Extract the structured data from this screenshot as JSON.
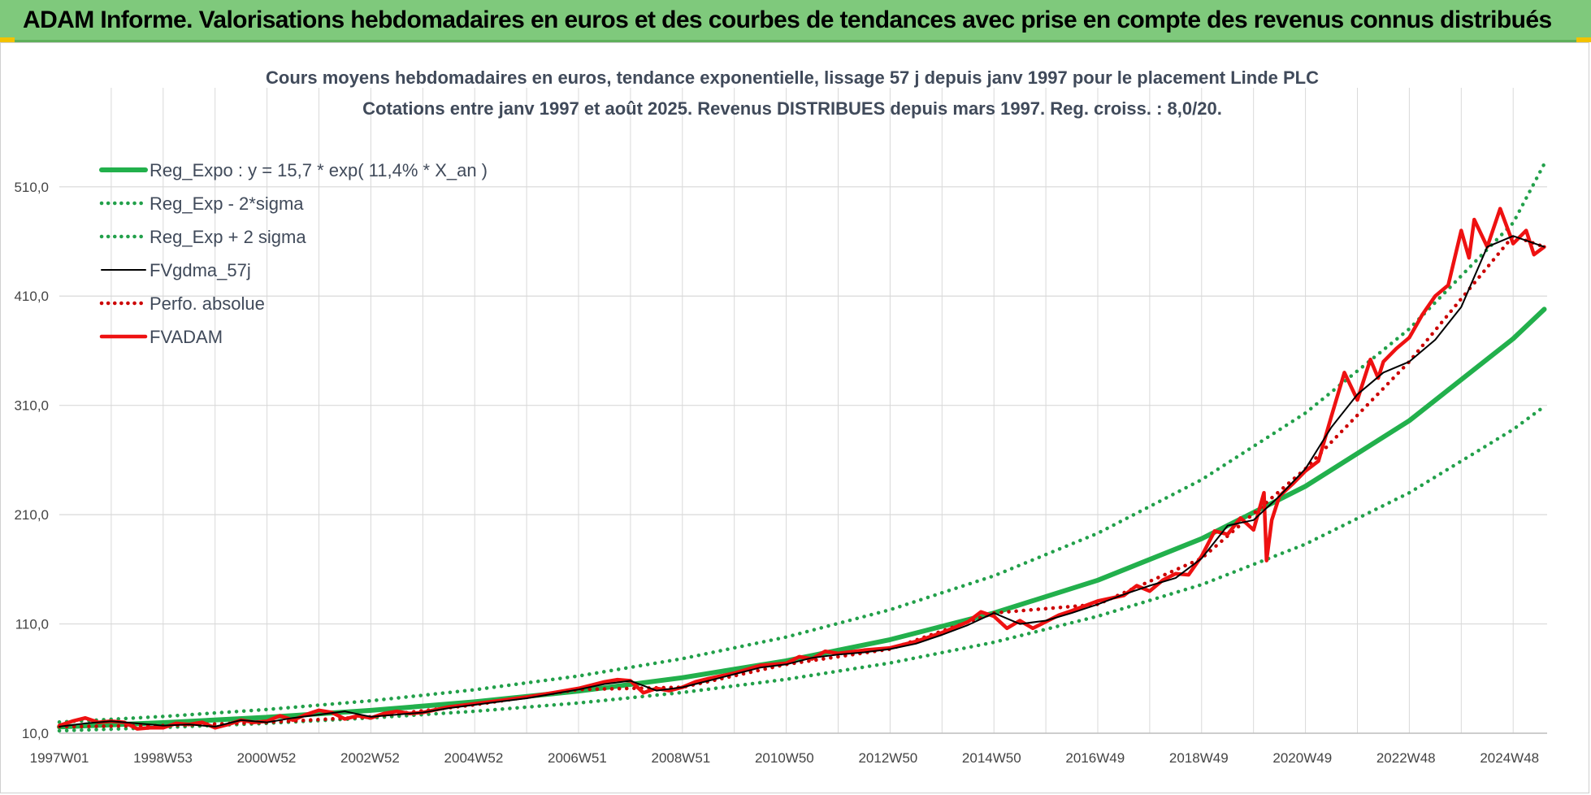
{
  "header": {
    "title": "ADAM Informe. Valorisations hebdomadaires en euros et des courbes de tendances avec prise en compte des revenus connus distribués"
  },
  "colors": {
    "banner": "#7fc97c",
    "reg_line": "#22b04c",
    "sigma_line": "#22a04a",
    "fvgdma": "#000000",
    "fvadam": "#ee1111",
    "perfo": "#cc0000",
    "grid": "#d9d9d9"
  },
  "chart_data": {
    "type": "line",
    "title": "Cours moyens hebdomadaires en euros, tendance exponentielle, lissage 57 j depuis janv 1997 pour le placement Linde PLC",
    "subtitle": "Cotations entre janv 1997 et août 2025.  Revenus DISTRIBUES depuis mars 1997. Reg. croiss. : 8,0/20.",
    "xlabel": "",
    "ylabel": "",
    "ylim": [
      10,
      510
    ],
    "yticks": [
      "10,0",
      "110,0",
      "210,0",
      "310,0",
      "410,0",
      "510,0"
    ],
    "xticks": [
      "1997W01",
      "1998W53",
      "2000W52",
      "2002W52",
      "2004W52",
      "2006W51",
      "2008W51",
      "2010W50",
      "2012W50",
      "2014W50",
      "2016W49",
      "2018W49",
      "2020W49",
      "2022W48",
      "2024W48"
    ],
    "xrange_years": [
      1997.0,
      2025.6
    ],
    "grid": true,
    "legend_position": "top-left",
    "series": [
      {
        "name": "Reg_Expo : y = 15,7 * exp( 11,4% *  X_an )",
        "style": "solid-thick",
        "color": "#22b04c",
        "x": [
          1997.0,
          1999.0,
          2001.0,
          2003.0,
          2005.0,
          2007.0,
          2009.0,
          2011.0,
          2013.0,
          2015.0,
          2017.0,
          2019.0,
          2021.0,
          2023.0,
          2025.0,
          2025.6
        ],
        "values": [
          15.7,
          19.7,
          24.6,
          30.9,
          38.7,
          48.5,
          60.8,
          76.3,
          95.6,
          120.0,
          150.0,
          188.0,
          236.0,
          296.0,
          371.0,
          398.0
        ]
      },
      {
        "name": "Reg_Exp - 2*sigma",
        "style": "dotted",
        "color": "#22a04a",
        "x": [
          1997.0,
          1999.0,
          2001.0,
          2003.0,
          2005.0,
          2007.0,
          2009.0,
          2011.0,
          2013.0,
          2015.0,
          2017.0,
          2019.0,
          2021.0,
          2023.0,
          2025.0,
          2025.6
        ],
        "values": [
          12.2,
          15.3,
          19.1,
          24.0,
          30.1,
          37.7,
          47.3,
          59.3,
          74.3,
          93.2,
          117.0,
          146.0,
          183.0,
          230.0,
          288.0,
          309.0
        ]
      },
      {
        "name": "Reg_Exp + 2 sigma",
        "style": "dotted",
        "color": "#22a04a",
        "x": [
          1997.0,
          1999.0,
          2001.0,
          2003.0,
          2005.0,
          2007.0,
          2009.0,
          2011.0,
          2013.0,
          2015.0,
          2017.0,
          2019.0,
          2021.0,
          2023.0,
          2025.0,
          2025.6
        ],
        "values": [
          20.2,
          25.3,
          31.7,
          39.7,
          49.8,
          62.4,
          78.2,
          98.0,
          123.0,
          154.0,
          193.0,
          242.0,
          303.0,
          380.0,
          477.0,
          531.0
        ]
      },
      {
        "name": "FVgdma_57j",
        "style": "solid",
        "color": "#000000",
        "x": [
          1997.0,
          1997.5,
          1998.0,
          1998.5,
          1999.0,
          1999.5,
          2000.0,
          2000.5,
          2001.0,
          2001.5,
          2002.0,
          2002.5,
          2003.0,
          2003.5,
          2004.0,
          2004.5,
          2005.0,
          2005.5,
          2006.0,
          2006.5,
          2007.0,
          2007.5,
          2008.0,
          2008.5,
          2009.0,
          2009.5,
          2010.0,
          2010.5,
          2011.0,
          2011.5,
          2012.0,
          2012.5,
          2013.0,
          2013.5,
          2014.0,
          2014.5,
          2015.0,
          2015.5,
          2016.0,
          2016.5,
          2017.0,
          2017.5,
          2018.0,
          2018.5,
          2019.0,
          2019.5,
          2020.0,
          2020.5,
          2021.0,
          2021.5,
          2022.0,
          2022.5,
          2023.0,
          2023.5,
          2024.0,
          2024.5,
          2025.0,
          2025.6
        ],
        "values": [
          16,
          19,
          21,
          19,
          17,
          18,
          16,
          22,
          20,
          24,
          27,
          30,
          25,
          27,
          29,
          33,
          36,
          39,
          42,
          46,
          50,
          55,
          58,
          49,
          52,
          58,
          64,
          70,
          73,
          79,
          82,
          84,
          87,
          92,
          100,
          109,
          120,
          110,
          113,
          120,
          128,
          137,
          145,
          152,
          170,
          200,
          205,
          227,
          252,
          290,
          320,
          340,
          350,
          370,
          400,
          455,
          465,
          455
        ]
      },
      {
        "name": "Perfo. absolue",
        "style": "dotted",
        "color": "#cc0000",
        "x": [
          1997.0,
          1999.0,
          2001.0,
          2003.0,
          2005.0,
          2007.0,
          2009.0,
          2011.0,
          2013.0,
          2015.0,
          2017.0,
          2019.0,
          2021.0,
          2023.0,
          2025.0,
          2025.6
        ],
        "values": [
          16,
          17,
          20,
          25,
          36,
          50,
          52,
          73,
          87,
          120,
          128,
          170,
          252,
          350,
          465,
          455
        ]
      },
      {
        "name": "FVADAM",
        "style": "solid-thick",
        "color": "#ee1111",
        "x": [
          1997.0,
          1997.25,
          1997.5,
          1997.75,
          1998.0,
          1998.25,
          1998.5,
          1998.75,
          1999.0,
          1999.25,
          1999.5,
          1999.75,
          2000.0,
          2000.25,
          2000.5,
          2000.75,
          2001.0,
          2001.25,
          2001.5,
          2001.75,
          2002.0,
          2002.25,
          2002.5,
          2002.75,
          2003.0,
          2003.25,
          2003.5,
          2003.75,
          2004.0,
          2004.5,
          2005.0,
          2005.5,
          2006.0,
          2006.5,
          2007.0,
          2007.5,
          2007.75,
          2008.0,
          2008.25,
          2008.5,
          2008.75,
          2009.0,
          2009.25,
          2009.5,
          2010.0,
          2010.5,
          2011.0,
          2011.25,
          2011.5,
          2011.75,
          2012.0,
          2012.5,
          2013.0,
          2013.5,
          2014.0,
          2014.5,
          2014.75,
          2015.0,
          2015.25,
          2015.5,
          2015.75,
          2016.0,
          2016.25,
          2016.5,
          2017.0,
          2017.5,
          2017.75,
          2018.0,
          2018.25,
          2018.5,
          2018.75,
          2019.0,
          2019.25,
          2019.5,
          2019.75,
          2020.0,
          2020.2,
          2020.25,
          2020.35,
          2020.5,
          2020.75,
          2021.0,
          2021.25,
          2021.5,
          2021.75,
          2022.0,
          2022.25,
          2022.4,
          2022.5,
          2022.75,
          2023.0,
          2023.25,
          2023.5,
          2023.75,
          2024.0,
          2024.15,
          2024.25,
          2024.5,
          2024.75,
          2025.0,
          2025.25,
          2025.4,
          2025.6
        ],
        "values": [
          17,
          21,
          24,
          20,
          21,
          20,
          14,
          15,
          15,
          19,
          18,
          20,
          15,
          18,
          22,
          20,
          21,
          26,
          22,
          27,
          31,
          29,
          23,
          26,
          24,
          28,
          30,
          28,
          29,
          34,
          37,
          40,
          43,
          47,
          51,
          57,
          59,
          58,
          47,
          51,
          49,
          52,
          57,
          60,
          65,
          72,
          74,
          80,
          78,
          85,
          83,
          86,
          88,
          94,
          102,
          112,
          121,
          117,
          106,
          113,
          106,
          112,
          118,
          122,
          131,
          136,
          145,
          140,
          150,
          156,
          155,
          172,
          195,
          192,
          207,
          196,
          230,
          168,
          205,
          227,
          238,
          250,
          259,
          300,
          340,
          315,
          352,
          335,
          350,
          362,
          372,
          393,
          410,
          420,
          470,
          445,
          480,
          455,
          490,
          458,
          470,
          448,
          455
        ]
      }
    ]
  }
}
